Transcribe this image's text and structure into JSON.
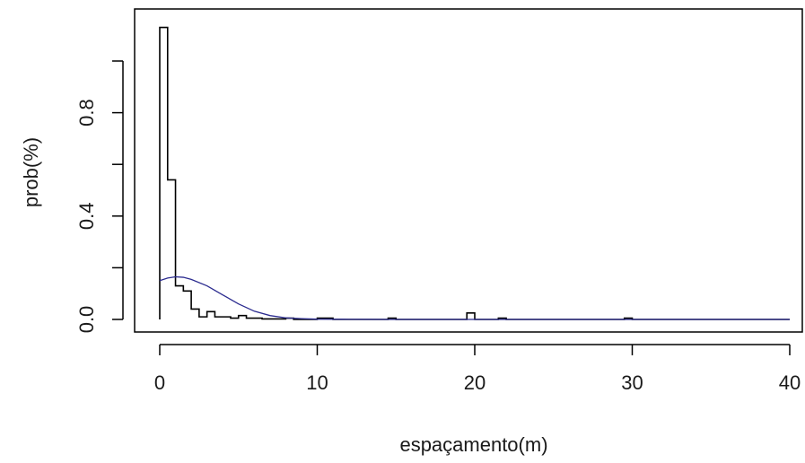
{
  "chart_data": {
    "type": "histogram",
    "title": "",
    "xlabel": "espaçamento(m)",
    "ylabel": "prob(%)",
    "xlim": [
      0,
      40
    ],
    "ylim": [
      0,
      1.2
    ],
    "grid": false,
    "legend": "none",
    "x_ticks": [
      "0",
      "10",
      "20",
      "30",
      "40"
    ],
    "y_ticks": [
      "0.0",
      "0.4",
      "0.8"
    ],
    "y_tick_positions": [
      0,
      0.2,
      0.4,
      0.6,
      0.8,
      1.0
    ],
    "series": [
      {
        "kind": "step",
        "color": "#000000",
        "bin_width": 0.5,
        "x_start": 0,
        "values": [
          1.13,
          0.54,
          0.13,
          0.11,
          0.04,
          0.01,
          0.03,
          0.01,
          0.01,
          0.005,
          0.015,
          0.005,
          0.005,
          0.002,
          0.002,
          0.002,
          0.005,
          0.0,
          0.0,
          0.0,
          0.005,
          0.005,
          0.0,
          0.0,
          0.0,
          0.0,
          0.0,
          0.0,
          0.0,
          0.005,
          0.0,
          0.0,
          0.0,
          0.0,
          0.0,
          0.0,
          0.0,
          0.0,
          0.0,
          0.025,
          0.0,
          0.0,
          0.0,
          0.005,
          0.0,
          0.0,
          0.0,
          0.0,
          0.0,
          0.0,
          0.0,
          0.0,
          0.0,
          0.0,
          0.0,
          0.0,
          0.0,
          0.0,
          0.0,
          0.005,
          0.0,
          0.0,
          0.0,
          0.0,
          0.0,
          0.0,
          0.0,
          0.0,
          0.0,
          0.0,
          0.0,
          0.0,
          0.0,
          0.0,
          0.0,
          0.0,
          0.0,
          0.0,
          0.0,
          0.0
        ]
      },
      {
        "kind": "line",
        "color": "#2b2b8f",
        "x": [
          0,
          0.5,
          1,
          1.5,
          2,
          3,
          4,
          5,
          6,
          7,
          8,
          9,
          10,
          12,
          15,
          20,
          25,
          30,
          35,
          40
        ],
        "y": [
          0.15,
          0.16,
          0.165,
          0.163,
          0.155,
          0.13,
          0.095,
          0.06,
          0.032,
          0.015,
          0.006,
          0.003,
          0.001,
          0.0005,
          0.0,
          0.0,
          0.0,
          0.0,
          0.0,
          0.0
        ]
      }
    ]
  }
}
